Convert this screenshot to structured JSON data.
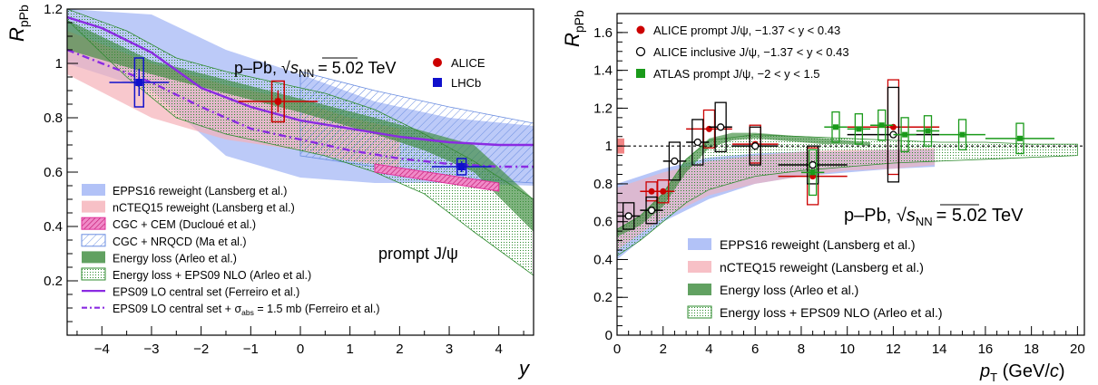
{
  "chart_data": [
    {
      "type": "scatter",
      "panel": "left",
      "ylabel_main": "R",
      "ylabel_sub": "pPb",
      "xlabel": "y",
      "xlim": [
        -4.7,
        4.7
      ],
      "ylim": [
        0,
        1.2
      ],
      "x_ticks": [
        -4,
        -3,
        -2,
        -1,
        0,
        1,
        2,
        3,
        4
      ],
      "y_ticks": [
        0.2,
        0.4,
        0.6,
        0.8,
        1,
        1.2
      ],
      "system_label": "p–Pb, ",
      "energy_label": "= 5.02 TeV",
      "sqrt_sym": "√",
      "sqrt_arg": "s",
      "sqrt_sub": "NN",
      "particle_label": "prompt J/ψ",
      "points": [
        {
          "name": "ALICE",
          "color": "#cc0000",
          "x": -0.45,
          "y": 0.86,
          "xerr": 0.8,
          "stat": 0.04,
          "syst": 0.075,
          "sysw": 0.25
        },
        {
          "name": "LHCb",
          "color": "#1010cc",
          "x": -3.25,
          "y": 0.93,
          "xerr": 0.6,
          "stat": 0.05,
          "syst": 0.09,
          "sysw": 0.18
        },
        {
          "name": "LHCb",
          "color": "#1010cc",
          "x": 3.25,
          "y": 0.62,
          "xerr": 0.6,
          "stat": 0.02,
          "syst": 0.03,
          "sysw": 0.18
        }
      ],
      "point_legend": [
        {
          "label": "ALICE",
          "color": "#cc0000",
          "marker": "circle"
        },
        {
          "label": "LHCb",
          "color": "#1010cc",
          "marker": "square"
        }
      ],
      "bands": [
        {
          "name": "EPPS16 reweight (Lansberg et al.)",
          "color": "#9fb3f5",
          "opacity": 0.7,
          "x": [
            -4.7,
            -3,
            -1.5,
            0,
            1.5,
            3,
            4.7
          ],
          "lo": [
            1.0,
            0.9,
            0.66,
            0.58,
            0.56,
            0.56,
            0.55
          ],
          "hi": [
            1.2,
            1.18,
            1.05,
            0.96,
            0.86,
            0.8,
            0.77
          ]
        },
        {
          "name": "nCTEQ15 reweight (Lansberg et al.)",
          "color": "#f5b0b8",
          "opacity": 0.7,
          "x": [
            -4.7,
            -3,
            -1.5,
            0,
            1,
            2
          ],
          "lo": [
            0.96,
            0.8,
            0.72,
            0.68,
            0.64,
            0.62
          ],
          "hi": [
            1.12,
            1.0,
            0.92,
            0.86,
            0.8,
            0.76
          ]
        },
        {
          "name": "CGC + NRQCD (Ma et al.)",
          "color": "#6a8de0",
          "hatch": true,
          "x": [
            0,
            1.5,
            3,
            4.7
          ],
          "lo": [
            0.66,
            0.62,
            0.58,
            0.56
          ],
          "hi": [
            0.97,
            0.9,
            0.84,
            0.78
          ]
        },
        {
          "name": "Energy loss + EPS09 NLO (Arleo et al.)",
          "color": "#2e8b2e",
          "hatch": true,
          "x": [
            -4.7,
            -3.5,
            -2.5,
            -1.5,
            -0.5,
            0.5,
            1.5,
            2.5,
            3.5,
            4.7
          ],
          "lo": [
            1.16,
            0.95,
            0.8,
            0.74,
            0.7,
            0.66,
            0.6,
            0.52,
            0.38,
            0.22
          ],
          "hi": [
            1.2,
            1.12,
            1.02,
            0.97,
            0.93,
            0.89,
            0.83,
            0.74,
            0.64,
            0.5
          ]
        },
        {
          "name": "Energy loss (Arleo et al.)",
          "color": "#3a8a3a",
          "opacity": 0.65,
          "x": [
            -4.7,
            -3,
            -1.5,
            0,
            1.5,
            2.5,
            3.5,
            4.7
          ],
          "lo": [
            1.05,
            0.96,
            0.89,
            0.82,
            0.74,
            0.68,
            0.6,
            0.38
          ],
          "hi": [
            1.16,
            1.01,
            0.94,
            0.87,
            0.8,
            0.75,
            0.7,
            0.5
          ]
        }
      ],
      "cgc_cem": {
        "name": "CGC + CEM (Ducloué et al.)",
        "color": "#e0309a",
        "x0": 1.5,
        "x1": 4.0,
        "lo0": 0.6,
        "hi0": 0.63,
        "lo1": 0.53,
        "hi1": 0.56
      },
      "curves": [
        {
          "name": "EPS09 LO central set (Ferreiro et al.)",
          "color": "#8a2be2",
          "dashed": false,
          "x": [
            -4.7,
            -4,
            -3,
            -2,
            -1,
            0,
            1,
            2,
            3,
            4,
            4.7
          ],
          "y": [
            1.17,
            1.13,
            1.04,
            0.91,
            0.84,
            0.79,
            0.76,
            0.73,
            0.71,
            0.7,
            0.7
          ]
        },
        {
          "name": "EPS09 LO central set + ",
          "color": "#8a2be2",
          "dashed": true,
          "x": [
            -4.7,
            -4,
            -3,
            -2,
            -1,
            0,
            1,
            2,
            3,
            4,
            4.7
          ],
          "y": [
            1.05,
            1.0,
            0.93,
            0.84,
            0.76,
            0.72,
            0.68,
            0.65,
            0.63,
            0.62,
            0.62
          ]
        }
      ],
      "legend": [
        {
          "label": "EPPS16 reweight (Lansberg et al.)",
          "swatch": "#9fb3f5",
          "style": "fill"
        },
        {
          "label": "nCTEQ15 reweight (Lansberg et al.)",
          "swatch": "#f5b0b8",
          "style": "fill"
        },
        {
          "label": "CGC + CEM (Ducloué et al.)",
          "swatch": "#e0309a",
          "style": "hatchfill"
        },
        {
          "label": "CGC + NRQCD (Ma et al.)",
          "swatch": "#6a8de0",
          "style": "hatch"
        },
        {
          "label": "Energy loss (Arleo et al.)",
          "swatch": "#3a8a3a",
          "style": "fill"
        },
        {
          "label": "Energy loss + EPS09 NLO (Arleo et al.)",
          "swatch": "#2e8b2e",
          "style": "hatch"
        },
        {
          "label": "EPS09 LO central set (Ferreiro et al.)",
          "swatch": "#8a2be2",
          "style": "line"
        },
        {
          "label": "EPS09 LO central set + ",
          "swatch": "#8a2be2",
          "style": "dash"
        }
      ],
      "legend_sigma": "σ",
      "legend_sigma_sub": "abs",
      "legend_sigma_tail": " = 1.5 mb (Ferreiro et al.)"
    },
    {
      "type": "scatter",
      "panel": "right",
      "ylabel_main": "R",
      "ylabel_sub": "pPb",
      "xlabel_main": "p",
      "xlabel_sub": "T",
      "xlabel_unit": " (GeV/",
      "xlabel_c": "c",
      "xlabel_close": ")",
      "xlim": [
        0,
        20.3
      ],
      "ylim": [
        0,
        1.7
      ],
      "x_ticks": [
        0,
        2,
        4,
        6,
        8,
        10,
        12,
        14,
        16,
        18,
        20
      ],
      "y_ticks": [
        0.2,
        0.4,
        0.6,
        0.8,
        1,
        1.2,
        1.4,
        1.6
      ],
      "system_label": "p–Pb, ",
      "energy_label": "= 5.02 TeV",
      "sqrt_sym": "√",
      "sqrt_arg": "s",
      "sqrt_sub": "NN",
      "series": [
        {
          "name": "ALICE prompt J/ψ, −1.37 < y < 0.43",
          "color": "#cc0000",
          "marker": "filled-circle",
          "points": [
            {
              "x": 1.5,
              "y": 0.76,
              "xerr": 0.5,
              "syst": 0.05
            },
            {
              "x": 2.0,
              "y": 0.76,
              "xerr": 0.5,
              "syst": 0.06
            },
            {
              "x": 4.0,
              "y": 1.09,
              "xerr": 1.0,
              "syst": 0.1
            },
            {
              "x": 6.0,
              "y": 1.01,
              "xerr": 1.0,
              "syst": 0.1
            },
            {
              "x": 8.5,
              "y": 0.84,
              "xerr": 1.5,
              "syst": 0.15
            },
            {
              "x": 12.0,
              "y": 1.1,
              "xerr": 2.0,
              "syst": 0.25
            }
          ]
        },
        {
          "name": "ALICE inclusive J/ψ, −1.37 < y < 0.43",
          "color": "#000000",
          "marker": "open-circle",
          "points": [
            {
              "x": 0.5,
              "y": 0.63,
              "xerr": 0.5,
              "syst": 0.07
            },
            {
              "x": 1.5,
              "y": 0.66,
              "xerr": 0.5,
              "syst": 0.07
            },
            {
              "x": 2.5,
              "y": 0.92,
              "xerr": 0.5,
              "syst": 0.1
            },
            {
              "x": 3.5,
              "y": 1.02,
              "xerr": 0.5,
              "syst": 0.12
            },
            {
              "x": 4.5,
              "y": 1.1,
              "xerr": 0.5,
              "syst": 0.13
            },
            {
              "x": 6.0,
              "y": 1.0,
              "xerr": 1.0,
              "syst": 0.1
            },
            {
              "x": 8.5,
              "y": 0.9,
              "xerr": 1.5,
              "syst": 0.1
            },
            {
              "x": 12.0,
              "y": 1.06,
              "xerr": 2.0,
              "syst": 0.25
            }
          ]
        },
        {
          "name": "ATLAS prompt J/ψ, −2 < y < 1.5",
          "color": "#1a9a1a",
          "marker": "filled-square",
          "points": [
            {
              "x": 8.5,
              "y": 0.86,
              "xerr": 0.5,
              "syst": 0.12
            },
            {
              "x": 9.5,
              "y": 1.1,
              "xerr": 0.5,
              "syst": 0.08
            },
            {
              "x": 10.5,
              "y": 1.09,
              "xerr": 0.5,
              "syst": 0.08
            },
            {
              "x": 11.5,
              "y": 1.11,
              "xerr": 0.5,
              "syst": 0.08
            },
            {
              "x": 12.5,
              "y": 1.06,
              "xerr": 0.5,
              "syst": 0.09
            },
            {
              "x": 13.5,
              "y": 1.08,
              "xerr": 0.5,
              "syst": 0.08
            },
            {
              "x": 15.0,
              "y": 1.06,
              "xerr": 1.0,
              "syst": 0.08
            },
            {
              "x": 17.5,
              "y": 1.04,
              "xerr": 1.5,
              "syst": 0.08
            }
          ]
        }
      ],
      "bands": [
        {
          "name": "EPPS16 reweight (Lansberg et al.)",
          "color": "#9fb3f5",
          "opacity": 0.75,
          "x": [
            0,
            2,
            4,
            6,
            8,
            10,
            12,
            13.8
          ],
          "lo": [
            0.4,
            0.6,
            0.72,
            0.8,
            0.84,
            0.86,
            0.88,
            0.89
          ],
          "hi": [
            0.8,
            0.88,
            0.94,
            0.96,
            0.97,
            0.97,
            0.98,
            0.98
          ]
        },
        {
          "name": "nCTEQ15 reweight (Lansberg et al.)",
          "color": "#f5b0b8",
          "opacity": 0.6,
          "x": [
            0,
            2,
            4,
            6,
            8,
            10,
            12,
            13.8
          ],
          "lo": [
            0.45,
            0.62,
            0.74,
            0.8,
            0.84,
            0.87,
            0.88,
            0.9
          ],
          "hi": [
            0.78,
            0.86,
            0.92,
            0.95,
            0.97,
            0.98,
            0.98,
            0.99
          ]
        },
        {
          "name": "Energy loss + EPS09 NLO (Arleo et al.)",
          "color": "#2e8b2e",
          "hatch": true,
          "x": [
            0,
            1,
            2,
            3,
            4,
            6,
            8,
            10,
            12,
            14,
            16,
            18,
            20
          ],
          "lo": [
            0.42,
            0.5,
            0.6,
            0.7,
            0.77,
            0.84,
            0.87,
            0.89,
            0.91,
            0.92,
            0.93,
            0.94,
            0.95
          ],
          "hi": [
            0.56,
            0.63,
            0.75,
            0.93,
            1.03,
            1.06,
            1.05,
            1.04,
            1.03,
            1.02,
            1.02,
            1.01,
            1.01
          ]
        },
        {
          "name": "Energy loss (Arleo et al.)",
          "color": "#3a8a3a",
          "opacity": 0.65,
          "x": [
            0,
            1,
            2,
            3,
            4,
            5,
            6,
            7,
            8,
            9,
            10,
            11
          ],
          "lo": [
            0.52,
            0.58,
            0.68,
            0.86,
            0.99,
            1.03,
            1.04,
            1.03,
            1.02,
            1.01,
            1.01,
            1.0
          ],
          "hi": [
            0.56,
            0.63,
            0.75,
            0.93,
            1.04,
            1.07,
            1.07,
            1.06,
            1.05,
            1.04,
            1.03,
            1.02
          ]
        }
      ],
      "legend": [
        {
          "label": "EPPS16 reweight (Lansberg et al.)",
          "swatch": "#9fb3f5",
          "style": "fill"
        },
        {
          "label": "nCTEQ15 reweight (Lansberg et al.)",
          "swatch": "#f5b0b8",
          "style": "fill"
        },
        {
          "label": "Energy loss (Arleo et al.)",
          "swatch": "#3a8a3a",
          "style": "fill"
        },
        {
          "label": "Energy loss + EPS09 NLO (Arleo et al.)",
          "swatch": "#2e8b2e",
          "style": "hatch"
        }
      ]
    }
  ]
}
